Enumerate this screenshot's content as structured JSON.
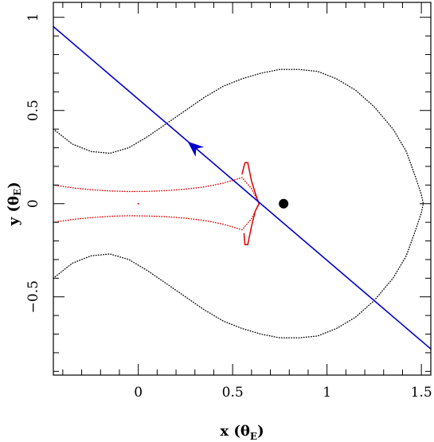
{
  "chart_data": {
    "type": "line",
    "title": "",
    "xlabel": {
      "var": "x",
      "unit": "θ",
      "unit_sub": "E"
    },
    "ylabel": {
      "var": "y",
      "unit": "θ",
      "unit_sub": "E"
    },
    "xlim": [
      -0.45,
      1.55
    ],
    "ylim": [
      -0.92,
      1.08
    ],
    "x_ticks": [
      {
        "value": 0,
        "label": "0"
      },
      {
        "value": 0.5,
        "label": "0.5"
      },
      {
        "value": 1,
        "label": "1"
      },
      {
        "value": 1.5,
        "label": "1.5"
      }
    ],
    "y_ticks": [
      {
        "value": -0.5,
        "label": "−0.5"
      },
      {
        "value": 0,
        "label": "0"
      },
      {
        "value": 0.5,
        "label": "0.5"
      },
      {
        "value": 1,
        "label": "1"
      }
    ],
    "x_minor_step": 0.1,
    "y_minor_step": 0.1,
    "grid": false,
    "colors": {
      "critical": "#000000",
      "caustic": "#dd0000",
      "trajectory": "#0000cc",
      "lens": "#000000"
    },
    "series": [
      {
        "kind": "critical-curve",
        "style": "dotted",
        "x": [
          -0.45,
          -0.35,
          -0.25,
          -0.15,
          -0.05,
          0.05,
          0.15,
          0.25,
          0.35,
          0.45,
          0.55,
          0.65,
          0.75,
          0.85,
          0.95,
          1.05,
          1.15,
          1.25,
          1.35,
          1.42,
          1.47,
          1.5,
          1.51,
          1.5,
          1.47,
          1.42,
          1.35,
          1.25,
          1.15,
          1.05,
          0.95,
          0.85,
          0.75,
          0.65,
          0.55,
          0.45,
          0.35,
          0.25,
          0.15,
          0.05,
          -0.05,
          -0.15,
          -0.25,
          -0.35,
          -0.45
        ],
        "y": [
          0.4,
          0.32,
          0.28,
          0.27,
          0.3,
          0.36,
          0.43,
          0.5,
          0.57,
          0.63,
          0.67,
          0.7,
          0.72,
          0.72,
          0.71,
          0.67,
          0.61,
          0.52,
          0.4,
          0.28,
          0.14,
          0.05,
          0.0,
          -0.05,
          -0.14,
          -0.28,
          -0.4,
          -0.52,
          -0.61,
          -0.67,
          -0.71,
          -0.72,
          -0.72,
          -0.7,
          -0.67,
          -0.63,
          -0.57,
          -0.5,
          -0.43,
          -0.36,
          -0.3,
          -0.27,
          -0.28,
          -0.32,
          -0.4
        ]
      },
      {
        "kind": "caustic-left",
        "style": "dotted",
        "x": [
          -0.45,
          -0.35,
          -0.25,
          -0.15,
          -0.05,
          0.05,
          0.15,
          0.25,
          0.35,
          0.45,
          0.55,
          0.6,
          0.64
        ],
        "y": [
          0.1,
          0.085,
          0.075,
          0.068,
          0.065,
          0.066,
          0.07,
          0.078,
          0.09,
          0.11,
          0.14,
          0.08,
          0.0
        ]
      },
      {
        "kind": "caustic-left",
        "style": "dotted",
        "x": [
          -0.45,
          -0.35,
          -0.25,
          -0.15,
          -0.05,
          0.05,
          0.15,
          0.25,
          0.35,
          0.45,
          0.55,
          0.6,
          0.64
        ],
        "y": [
          -0.1,
          -0.085,
          -0.075,
          -0.068,
          -0.065,
          -0.066,
          -0.07,
          -0.078,
          -0.09,
          -0.11,
          -0.14,
          -0.08,
          0.0
        ]
      },
      {
        "kind": "caustic-cusps",
        "style": "solid",
        "x": [
          0.55,
          0.565,
          0.58,
          0.6,
          0.625,
          0.64,
          0.62,
          0.6,
          0.58,
          0.565,
          0.56
        ],
        "y": [
          0.16,
          0.22,
          0.22,
          0.12,
          0.04,
          0.0,
          -0.04,
          -0.12,
          -0.22,
          -0.22,
          -0.16
        ]
      },
      {
        "kind": "trajectory",
        "style": "solid",
        "x": [
          -0.45,
          1.55
        ],
        "y": [
          0.95,
          -0.78
        ]
      }
    ],
    "arrow": {
      "x": 0.3,
      "y": 0.3,
      "dx": -0.06,
      "dy": 0.052
    },
    "lens_point": {
      "x": 0.77,
      "y": 0.0
    },
    "caustic_dot": {
      "x": 0.0,
      "y": 0.0
    }
  }
}
